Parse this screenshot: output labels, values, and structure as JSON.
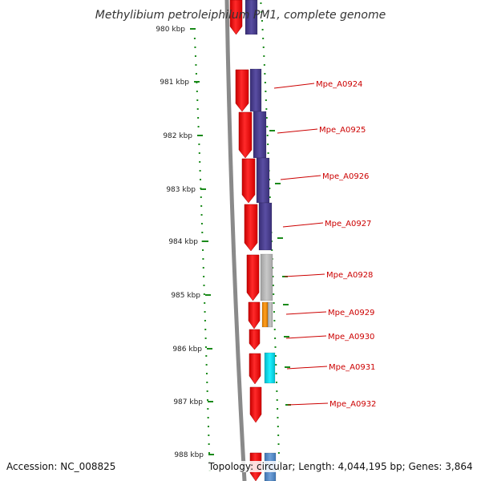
{
  "title": "Methylibium petroleiphilum PM1, complete genome",
  "footer": {
    "accession": "Accession: NC_008825",
    "topology": "Topology: circular; Length: 4,044,195 bp; Genes: 3,864"
  },
  "colors": {
    "forward_strand": "#ee0000",
    "cds_blue": "#4b3f8f",
    "cds_gray": "#b3b3b3",
    "cds_orange": "#f08c00",
    "cds_cyan": "#00d8e8",
    "cds_lightblue": "#5b8fc9",
    "backbone": "#8a8a8a",
    "tick": "#1a8a1a",
    "label": "#cc0000"
  },
  "scale": {
    "unit": "kbp",
    "ticks": [
      {
        "label": "980 kbp"
      },
      {
        "label": "981 kbp"
      },
      {
        "label": "982 kbp"
      },
      {
        "label": "983 kbp"
      },
      {
        "label": "984 kbp"
      },
      {
        "label": "985 kbp"
      },
      {
        "label": "986 kbp"
      },
      {
        "label": "987 kbp"
      },
      {
        "label": "988 kbp"
      }
    ]
  },
  "genes": [
    {
      "label": "Mpe_A0924"
    },
    {
      "label": "Mpe_A0925"
    },
    {
      "label": "Mpe_A0926"
    },
    {
      "label": "Mpe_A0927"
    },
    {
      "label": "Mpe_A0928"
    },
    {
      "label": "Mpe_A0929"
    },
    {
      "label": "Mpe_A0930"
    },
    {
      "label": "Mpe_A0931"
    },
    {
      "label": "Mpe_A0932"
    }
  ]
}
